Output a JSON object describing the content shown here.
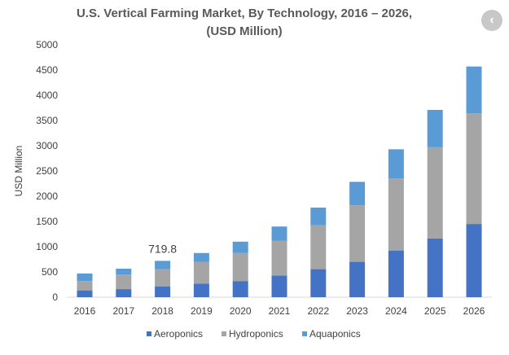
{
  "chart_data": {
    "type": "bar",
    "stacked": true,
    "title": "U.S. Vertical Farming Market, By Technology, 2016 – 2026,",
    "subtitle": "(USD Million)",
    "xlabel": "",
    "ylabel": "USD Million",
    "ylim": [
      0,
      5000
    ],
    "yticks": [
      "0",
      "500",
      "1000",
      "1500",
      "2000",
      "2500",
      "3000",
      "3500",
      "4000",
      "4500",
      "5000"
    ],
    "categories": [
      "2016",
      "2017",
      "2018",
      "2019",
      "2020",
      "2021",
      "2022",
      "2023",
      "2024",
      "2025",
      "2026"
    ],
    "series": [
      {
        "name": "Aeroponics",
        "color": "#4472C4",
        "values": [
          135,
          160,
          215,
          270,
          320,
          430,
          555,
          700,
          925,
          1165,
          1450
        ]
      },
      {
        "name": "Hydroponics",
        "color": "#A5A5A5",
        "values": [
          185,
          290,
          340,
          430,
          555,
          685,
          870,
          1120,
          1425,
          1805,
          2190
        ]
      },
      {
        "name": "Aquaponics",
        "color": "#5B9BD5",
        "values": [
          150,
          115,
          165,
          175,
          225,
          285,
          350,
          465,
          580,
          740,
          930
        ]
      }
    ],
    "annotations": [
      {
        "category": "2018",
        "text": "719.8"
      }
    ],
    "legend": "bottom",
    "grid": false
  },
  "nav": {
    "icon": "chevron-left-icon",
    "glyph": "‹"
  }
}
